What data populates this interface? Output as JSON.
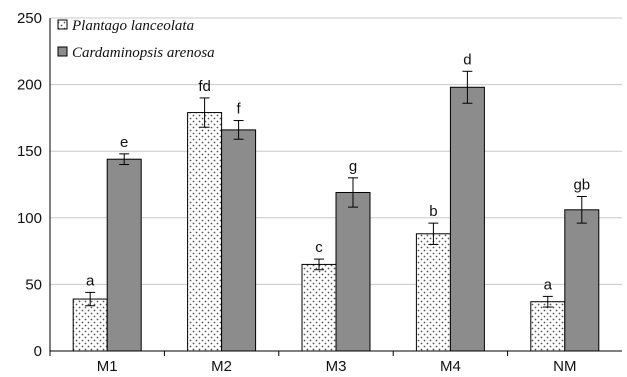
{
  "chart_data": {
    "type": "bar",
    "title": "",
    "xlabel": "",
    "ylabel": "",
    "ylim": [
      0,
      250
    ],
    "yticks": [
      0,
      50,
      100,
      150,
      200,
      250
    ],
    "grid": true,
    "legend_position": "top-left",
    "categories": [
      "M1",
      "M2",
      "M3",
      "M4",
      "NM"
    ],
    "series": [
      {
        "name": "Plantago lanceolata",
        "color": "#ffffff",
        "pattern": "dots",
        "values": [
          39,
          179,
          65,
          88,
          37
        ],
        "errors": [
          5,
          11,
          4,
          8,
          4
        ],
        "labels": [
          "a",
          "fd",
          "c",
          "b",
          "a"
        ]
      },
      {
        "name": "Cardaminopsis arenosa",
        "color": "#8c8c8c",
        "pattern": "solid",
        "values": [
          144,
          166,
          119,
          198,
          106
        ],
        "errors": [
          4,
          7,
          11,
          12,
          10
        ],
        "labels": [
          "e",
          "f",
          "g",
          "d",
          "gb"
        ]
      }
    ]
  }
}
